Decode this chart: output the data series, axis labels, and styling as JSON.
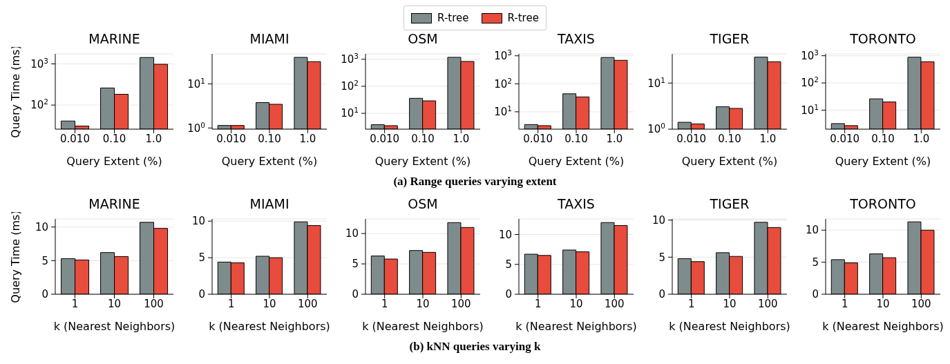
{
  "chart_data": [
    {
      "type": "bar",
      "title": "MARINE",
      "xlabel": "Query Extent (%)",
      "ylabel": "Query Time (ms)",
      "categories": [
        "0.010",
        "0.10",
        "1.0"
      ],
      "log": true,
      "ylim": [
        26,
        1750
      ],
      "yticks": [
        {
          "value": 100,
          "label": "10$^{2}$"
        },
        {
          "value": 1000,
          "label": "10$^{3}$"
        }
      ],
      "grid": "y",
      "legend": "top",
      "annotations": [
        "(a) Range queries varying extent"
      ],
      "series": [
        {
          "name": "R-tree",
          "color": "#7f8c8d",
          "values": [
            41,
            260,
            1430
          ]
        },
        {
          "name": "R-tree",
          "color": "#e74c3c",
          "values": [
            31,
            183,
            980
          ]
        }
      ]
    },
    {
      "type": "bar",
      "title": "MIAMI",
      "xlabel": "Query Extent (%)",
      "categories": [
        "0.010",
        "0.10",
        "1.0"
      ],
      "log": true,
      "ylim": [
        0.94,
        48
      ],
      "yticks": [
        {
          "value": 1,
          "label": "10$^{0}$"
        },
        {
          "value": 10,
          "label": "10$^{1}$"
        }
      ],
      "grid": "y",
      "series": [
        {
          "color": "#7f8c8d",
          "values": [
            1.14,
            3.77,
            40
          ]
        },
        {
          "color": "#e74c3c",
          "values": [
            1.14,
            3.45,
            32
          ]
        }
      ]
    },
    {
      "type": "bar",
      "title": "OSM",
      "xlabel": "Query Extent (%)",
      "categories": [
        "0.010",
        "0.10",
        "1.0"
      ],
      "log": true,
      "ylim": [
        2.6,
        1580
      ],
      "yticks": [
        {
          "value": 10,
          "label": "10$^{1}$"
        },
        {
          "value": 100,
          "label": "10$^{2}$"
        },
        {
          "value": 1000,
          "label": "10$^{3}$"
        }
      ],
      "grid": "y",
      "series": [
        {
          "color": "#7f8c8d",
          "values": [
            3.8,
            36,
            1180
          ]
        },
        {
          "color": "#e74c3c",
          "values": [
            3.5,
            29,
            830
          ]
        }
      ]
    },
    {
      "type": "bar",
      "title": "TAXIS",
      "xlabel": "Query Extent (%)",
      "categories": [
        "0.010",
        "0.10",
        "1.0"
      ],
      "log": true,
      "ylim": [
        2.4,
        1170
      ],
      "yticks": [
        {
          "value": 10,
          "label": "10$^{1}$"
        },
        {
          "value": 100,
          "label": "10$^{2}$"
        },
        {
          "value": 1000,
          "label": "10$^{3}$"
        }
      ],
      "grid": "y",
      "series": [
        {
          "color": "#7f8c8d",
          "values": [
            3.5,
            44,
            870
          ]
        },
        {
          "color": "#e74c3c",
          "values": [
            3.2,
            34,
            690
          ]
        }
      ]
    },
    {
      "type": "bar",
      "title": "TIGER",
      "xlabel": "Query Extent (%)",
      "categories": [
        "0.010",
        "0.10",
        "1.0"
      ],
      "log": true,
      "ylim": [
        1,
        43
      ],
      "yticks": [
        {
          "value": 1,
          "label": "10$^{0}$"
        },
        {
          "value": 10,
          "label": "10$^{1}$"
        }
      ],
      "grid": "y",
      "series": [
        {
          "color": "#7f8c8d",
          "values": [
            1.41,
            3.06,
            36.5
          ]
        },
        {
          "color": "#e74c3c",
          "values": [
            1.3,
            2.82,
            29
          ]
        }
      ]
    },
    {
      "type": "bar",
      "title": "TORONTO",
      "xlabel": "Query Extent (%)",
      "categories": [
        "0.010",
        "0.10",
        "1.0"
      ],
      "log": true,
      "ylim": [
        2,
        1170
      ],
      "yticks": [
        {
          "value": 10,
          "label": "10$^{1}$"
        },
        {
          "value": 100,
          "label": "10$^{2}$"
        },
        {
          "value": 1000,
          "label": "10$^{3}$"
        }
      ],
      "grid": "y",
      "series": [
        {
          "color": "#7f8c8d",
          "values": [
            3.2,
            26,
            880
          ]
        },
        {
          "color": "#e74c3c",
          "values": [
            2.7,
            20,
            600
          ]
        }
      ]
    },
    {
      "type": "bar",
      "title": "MARINE",
      "xlabel": "k (Nearest Neighbors)",
      "ylabel": "Query Time (ms)",
      "categories": [
        "1",
        "10",
        "100"
      ],
      "ylim": [
        0,
        11.2
      ],
      "yticks": [
        0,
        5,
        10
      ],
      "grid": "y",
      "annotations": [
        "(b) kNN queries varying k"
      ],
      "series": [
        {
          "color": "#7f8c8d",
          "values": [
            5.3,
            6.2,
            10.7
          ]
        },
        {
          "color": "#e74c3c",
          "values": [
            5.1,
            5.6,
            9.8
          ]
        }
      ]
    },
    {
      "type": "bar",
      "title": "MIAMI",
      "xlabel": "k (Nearest Neighbors)",
      "categories": [
        "1",
        "10",
        "100"
      ],
      "ylim": [
        0,
        10.3
      ],
      "yticks": [
        0,
        5,
        10
      ],
      "grid": "y",
      "series": [
        {
          "color": "#7f8c8d",
          "values": [
            4.4,
            5.2,
            9.9
          ]
        },
        {
          "color": "#e74c3c",
          "values": [
            4.3,
            5.0,
            9.4
          ]
        }
      ]
    },
    {
      "type": "bar",
      "title": "OSM",
      "xlabel": "k (Nearest Neighbors)",
      "categories": [
        "1",
        "10",
        "100"
      ],
      "ylim": [
        0,
        12.4
      ],
      "yticks": [
        0,
        5,
        10
      ],
      "grid": "y",
      "series": [
        {
          "color": "#7f8c8d",
          "values": [
            6.3,
            7.2,
            11.8
          ]
        },
        {
          "color": "#e74c3c",
          "values": [
            5.8,
            6.9,
            11.0
          ]
        }
      ]
    },
    {
      "type": "bar",
      "title": "TAXIS",
      "xlabel": "k (Nearest Neighbors)",
      "categories": [
        "1",
        "10",
        "100"
      ],
      "ylim": [
        0,
        12.6
      ],
      "yticks": [
        0,
        5,
        10
      ],
      "grid": "y",
      "series": [
        {
          "color": "#7f8c8d",
          "values": [
            6.7,
            7.4,
            12.0
          ]
        },
        {
          "color": "#e74c3c",
          "values": [
            6.5,
            7.1,
            11.5
          ]
        }
      ]
    },
    {
      "type": "bar",
      "title": "TIGER",
      "xlabel": "k (Nearest Neighbors)",
      "categories": [
        "1",
        "10",
        "100"
      ],
      "ylim": [
        0,
        10.15
      ],
      "yticks": [
        0,
        5,
        10
      ],
      "grid": "y",
      "series": [
        {
          "color": "#7f8c8d",
          "values": [
            4.8,
            5.6,
            9.7
          ]
        },
        {
          "color": "#e74c3c",
          "values": [
            4.4,
            5.1,
            9.0
          ]
        }
      ]
    },
    {
      "type": "bar",
      "title": "TORONTO",
      "xlabel": "k (Nearest Neighbors)",
      "categories": [
        "1",
        "10",
        "100"
      ],
      "ylim": [
        0,
        11.75
      ],
      "yticks": [
        0,
        5,
        10
      ],
      "grid": "y",
      "series": [
        {
          "color": "#7f8c8d",
          "values": [
            5.4,
            6.3,
            11.3
          ]
        },
        {
          "color": "#e74c3c",
          "values": [
            4.9,
            5.7,
            10.0
          ]
        }
      ]
    }
  ]
}
